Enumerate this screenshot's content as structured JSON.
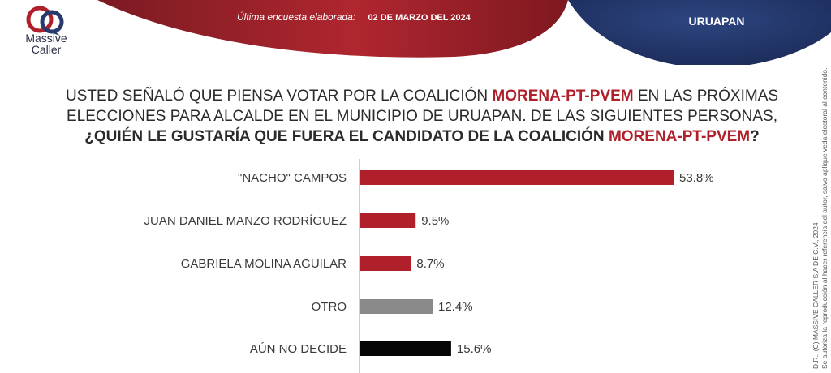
{
  "header": {
    "brand_line1": "Massive",
    "brand_line2": "Caller",
    "survey_label": "Última encuesta elaborada:",
    "survey_date": "02 DE MARZO DEL 2024",
    "city": "URUAPAN",
    "colors": {
      "red": "#a9202c",
      "navy": "#263a6e"
    }
  },
  "question": {
    "line1_a": "USTED SEÑALÓ QUE PIENSA VOTAR POR LA COALICIÓN ",
    "line1_hl": "MORENA-PT-PVEM",
    "line1_b": " EN LAS PRÓXIMAS",
    "line2": "ELECCIONES PARA ALCALDE EN EL MUNICIPIO DE URUAPAN.  DE LAS SIGUIENTES PERSONAS,",
    "line3_a": "¿QUIÉN LE GUSTARÍA QUE FUERA EL CANDIDATO DE LA COALICIÓN ",
    "line3_hl": "MORENA-PT-PVEM",
    "line3_b": "?"
  },
  "chart_data": {
    "type": "bar",
    "orientation": "horizontal",
    "categories": [
      "\"NACHO\" CAMPOS",
      "JUAN DANIEL MANZO RODRÍGUEZ",
      "GABRIELA MOLINA AGUILAR",
      "OTRO",
      "AÚN NO DECIDE"
    ],
    "values": [
      53.8,
      9.5,
      8.7,
      12.4,
      15.6
    ],
    "labels": [
      "53.8%",
      "9.5%",
      "8.7%",
      "12.4%",
      "15.6%"
    ],
    "colors": [
      "#b0202b",
      "#b0202b",
      "#b0202b",
      "#8a8a8a",
      "#050505"
    ],
    "xlim": [
      0,
      53.8
    ],
    "grid": false
  },
  "side_note": {
    "line1": "D.R., (C) MASSIVE CALLER S.A DE C.V., 2024",
    "line2": "Se autoriza la reproducción al hacer referencia del autor, salvo aplique veda electoral al contenido."
  }
}
